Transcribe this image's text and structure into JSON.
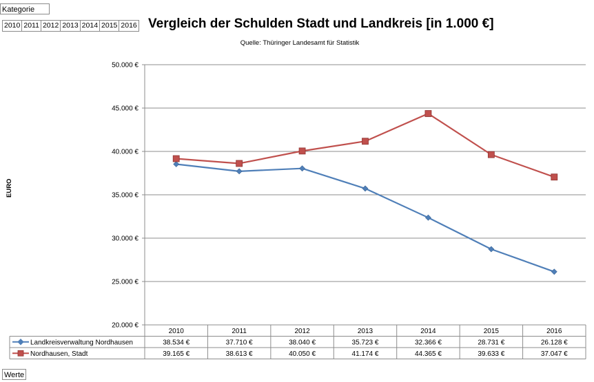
{
  "filters": {
    "category_label": "Kategorie",
    "years": [
      "2010",
      "2011",
      "2012",
      "2013",
      "2014",
      "2015",
      "2016"
    ],
    "values_label": "Werte"
  },
  "chart_data": {
    "type": "line",
    "title": "Vergleich der Schulden Stadt und Landkreis [in 1.000 €]",
    "subtitle": "Quelle: Thüringer Landesamt für Statistik",
    "ylabel": "EURO",
    "xlabel": "",
    "categories": [
      "2010",
      "2011",
      "2012",
      "2013",
      "2014",
      "2015",
      "2016"
    ],
    "ylim": [
      20000,
      50000
    ],
    "yticks": [
      20000,
      25000,
      30000,
      35000,
      40000,
      45000,
      50000
    ],
    "ytick_labels": [
      "20.000 €",
      "25.000 €",
      "30.000 €",
      "35.000 €",
      "40.000 €",
      "45.000 €",
      "50.000 €"
    ],
    "grid": true,
    "legend": "data-table",
    "series": [
      {
        "name": "Landkreisverwaltung Nordhausen",
        "color": "#4f7fb8",
        "marker": "diamond",
        "values": [
          38534,
          37710,
          38040,
          35723,
          32366,
          28731,
          26128
        ],
        "labels": [
          "38.534 €",
          "37.710 €",
          "38.040 €",
          "35.723 €",
          "32.366 €",
          "28.731 €",
          "26.128 €"
        ]
      },
      {
        "name": "Nordhausen, Stadt",
        "color": "#c0504d",
        "marker": "square",
        "values": [
          39165,
          38613,
          40050,
          41174,
          44365,
          39633,
          37047
        ],
        "labels": [
          "39.165 €",
          "38.613 €",
          "40.050 €",
          "41.174 €",
          "44.365 €",
          "39.633 €",
          "37.047 €"
        ]
      }
    ]
  }
}
